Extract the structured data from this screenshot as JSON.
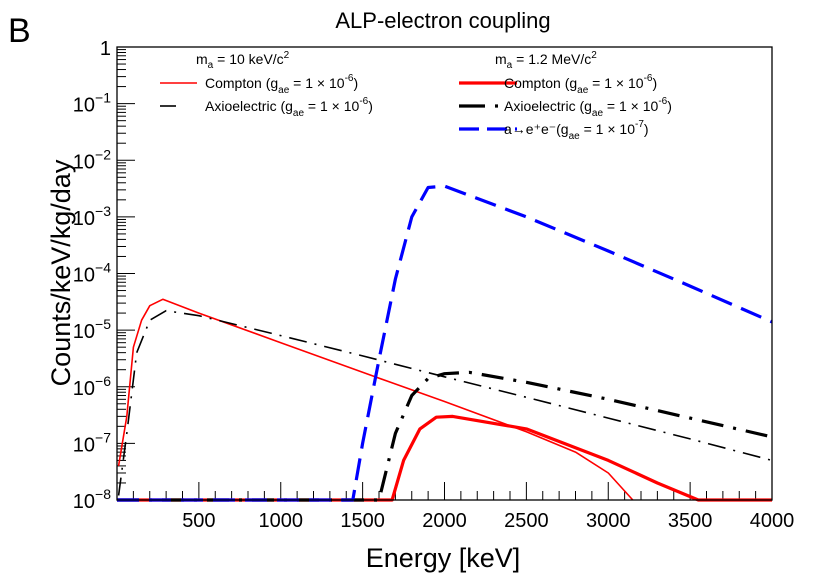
{
  "panel_label": "B",
  "chart_data": {
    "type": "line",
    "title": "ALP-electron coupling",
    "xlabel": "Energy [keV]",
    "ylabel": "Counts/keV/kg/day",
    "xlim": [
      0,
      4000
    ],
    "ylim": [
      1e-08,
      1
    ],
    "yscale": "log",
    "xticks": [
      500,
      1000,
      1500,
      2000,
      2500,
      3000,
      3500,
      4000
    ],
    "yticks": [
      {
        "value": 1,
        "base": "1",
        "exp": ""
      },
      {
        "value": 0.1,
        "base": "10",
        "exp": "−1"
      },
      {
        "value": 0.01,
        "base": "10",
        "exp": "−2"
      },
      {
        "value": 0.001,
        "base": "10",
        "exp": "−3"
      },
      {
        "value": 0.0001,
        "base": "10",
        "exp": "−4"
      },
      {
        "value": 1e-05,
        "base": "10",
        "exp": "−5"
      },
      {
        "value": 1e-06,
        "base": "10",
        "exp": "−6"
      },
      {
        "value": 1e-07,
        "base": "10",
        "exp": "−7"
      },
      {
        "value": 1e-08,
        "base": "10",
        "exp": "−8"
      }
    ],
    "legend_groups": [
      {
        "header": "m_a = 10 keV/c^2",
        "header_parts": [
          "m",
          "a",
          " = 10 keV/c",
          "2"
        ]
      },
      {
        "header": "m_a = 1.2 MeV/c^2",
        "header_parts": [
          "m",
          "a",
          " = 1.2 MeV/c",
          "2"
        ]
      }
    ],
    "legend_placement": "top",
    "series": [
      {
        "name": "Compton (g_ae = 1 × 10^-6)",
        "group": 0,
        "label": "Compton (g",
        "exp": "-6",
        "color": "#ff0000",
        "width": 1.6,
        "dash": "",
        "points": [
          [
            10,
            4e-08
          ],
          [
            60,
            3e-07
          ],
          [
            100,
            5e-06
          ],
          [
            150,
            1.5e-05
          ],
          [
            200,
            2.7e-05
          ],
          [
            280,
            3.5e-05
          ],
          [
            500,
            2e-05
          ],
          [
            1000,
            6e-06
          ],
          [
            1500,
            1.8e-06
          ],
          [
            2000,
            5.5e-07
          ],
          [
            2500,
            1.6e-07
          ],
          [
            2800,
            7e-08
          ],
          [
            3000,
            3e-08
          ],
          [
            3150,
            1e-08
          ]
        ]
      },
      {
        "name": "Axioelectric (g_ae = 1 × 10^-6)",
        "group": 0,
        "label": "Axioelectric (g",
        "exp": "-6",
        "color": "#000000",
        "width": 1.6,
        "dash": "18,8,2,8",
        "points": [
          [
            10,
            1.2e-08
          ],
          [
            60,
            1.5e-07
          ],
          [
            120,
            4e-06
          ],
          [
            200,
            1.5e-05
          ],
          [
            300,
            2.2e-05
          ],
          [
            500,
            1.8e-05
          ],
          [
            1000,
            8e-06
          ],
          [
            1500,
            3.5e-06
          ],
          [
            2000,
            1.5e-06
          ],
          [
            2500,
            6.5e-07
          ],
          [
            3000,
            2.8e-07
          ],
          [
            3500,
            1.2e-07
          ],
          [
            4000,
            5e-08
          ]
        ]
      },
      {
        "name": "Compton (g_ae = 1 × 10^-6)",
        "group": 1,
        "label": "Compton (g",
        "exp": "-6",
        "color": "#ff0000",
        "width": 3.2,
        "dash": "",
        "points": [
          [
            0,
            1e-08
          ],
          [
            1680,
            1e-08
          ],
          [
            1750,
            5e-08
          ],
          [
            1850,
            1.8e-07
          ],
          [
            1950,
            2.9e-07
          ],
          [
            2050,
            3e-07
          ],
          [
            2500,
            1.8e-07
          ],
          [
            3000,
            5e-08
          ],
          [
            3300,
            2e-08
          ],
          [
            3550,
            1e-08
          ],
          [
            4000,
            1e-08
          ]
        ]
      },
      {
        "name": "Axioelectric (g_ae = 1 × 10^-6)",
        "group": 1,
        "label": "Axioelectric (g",
        "exp": "-6",
        "color": "#000000",
        "width": 3.2,
        "dash": "22,10,3,10",
        "points": [
          [
            0,
            1e-08
          ],
          [
            1600,
            1e-08
          ],
          [
            1700,
            1.5e-07
          ],
          [
            1800,
            7e-07
          ],
          [
            1900,
            1.4e-06
          ],
          [
            2000,
            1.7e-06
          ],
          [
            2150,
            1.8e-06
          ],
          [
            2500,
            1.2e-06
          ],
          [
            3000,
            6e-07
          ],
          [
            3500,
            2.8e-07
          ],
          [
            4000,
            1.3e-07
          ]
        ]
      },
      {
        "name": "a→e+e- (g_ae = 1 × 10^-7)",
        "group": 1,
        "label": "a→e⁺e⁻(g",
        "exp": "-7",
        "color": "#0000ff",
        "width": 3.2,
        "dash": "22,10",
        "points": [
          [
            0,
            1e-08
          ],
          [
            1440,
            1e-08
          ],
          [
            1500,
            1e-07
          ],
          [
            1600,
            3e-06
          ],
          [
            1700,
            8e-05
          ],
          [
            1800,
            0.001
          ],
          [
            1900,
            0.0033
          ],
          [
            2000,
            0.0035
          ],
          [
            2500,
            0.001
          ],
          [
            3000,
            0.00025
          ],
          [
            3500,
            6e-05
          ],
          [
            4000,
            1.4e-05
          ]
        ]
      }
    ]
  }
}
